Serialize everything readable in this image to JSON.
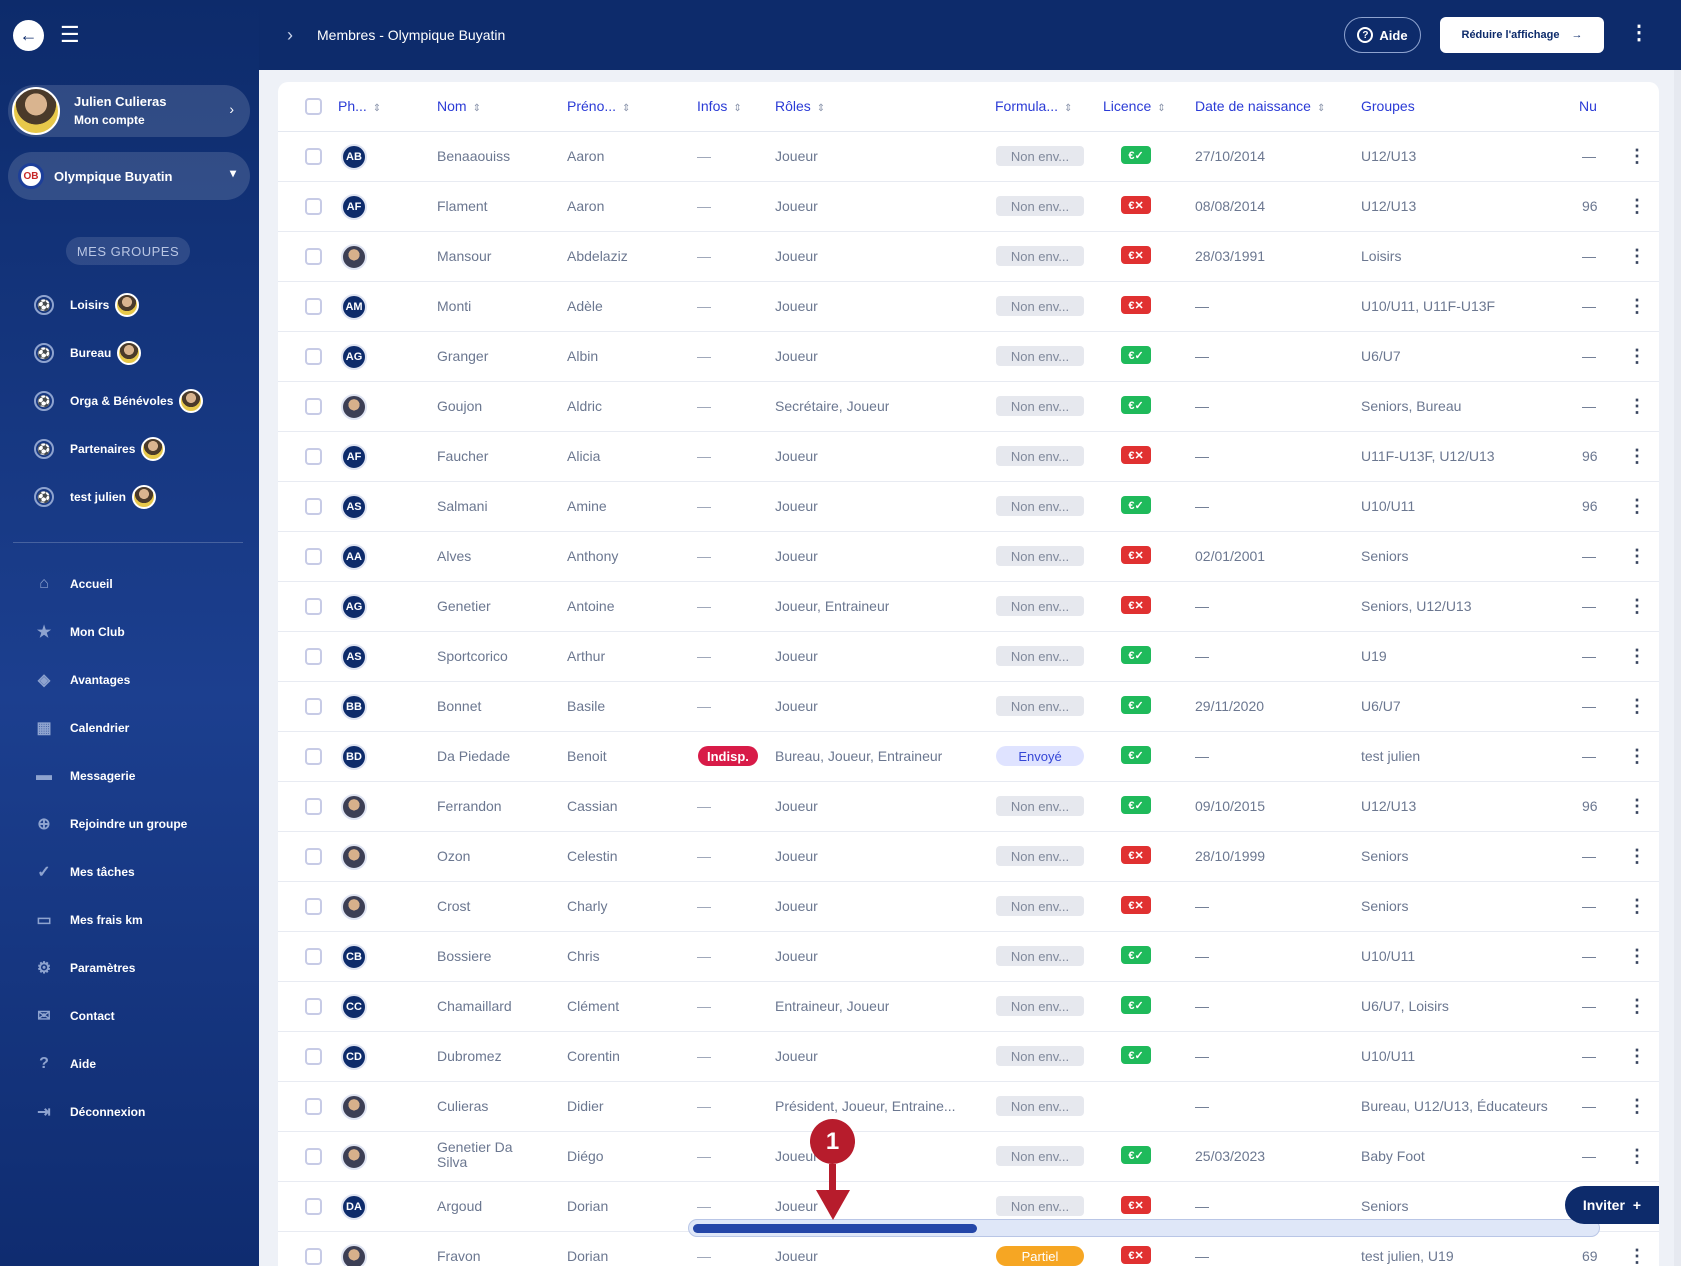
{
  "sidebar": {
    "account": {
      "name": "Julien Culieras",
      "sub": "Mon compte"
    },
    "club": {
      "name": "Olympique Buyatin",
      "logo": "OB"
    },
    "groups_title": "MES GROUPES",
    "groups": [
      "Loisirs",
      "Bureau",
      "Orga & Bénévoles",
      "Partenaires",
      "test julien"
    ],
    "nav": [
      {
        "label": "Accueil",
        "icon": "home-icon"
      },
      {
        "label": "Mon Club",
        "icon": "star-icon"
      },
      {
        "label": "Avantages",
        "icon": "gift-icon"
      },
      {
        "label": "Calendrier",
        "icon": "calendar-icon"
      },
      {
        "label": "Messagerie",
        "icon": "message-icon"
      },
      {
        "label": "Rejoindre un groupe",
        "icon": "add-user-icon"
      },
      {
        "label": "Mes tâches",
        "icon": "tasks-icon"
      },
      {
        "label": "Mes frais km",
        "icon": "car-icon"
      },
      {
        "label": "Paramètres",
        "icon": "gear-icon"
      },
      {
        "label": "Contact",
        "icon": "mail-icon"
      },
      {
        "label": "Aide",
        "icon": "help-icon"
      },
      {
        "label": "Déconnexion",
        "icon": "logout-icon"
      }
    ]
  },
  "topbar": {
    "breadcrumb": "Membres - Olympique Buyatin",
    "help_label": "Aide",
    "reduce_label": "Réduire l'affichage"
  },
  "table": {
    "headers": {
      "photo": "Ph...",
      "nom": "Nom",
      "prenom": "Préno...",
      "infos": "Infos",
      "roles": "Rôles",
      "formulaire": "Formula...",
      "licence": "Licence",
      "naissance": "Date de naissance",
      "groupes": "Groupes",
      "numero": "Nu"
    },
    "rows": [
      {
        "initials": "AB",
        "nom": "Benaaouiss",
        "prenom": "Aaron",
        "infos": "—",
        "roles": "Joueur",
        "form": "Non env...",
        "form_type": "none",
        "lic": "ok",
        "lic_text": "€✓",
        "dob": "27/10/2014",
        "groupes": "U12/U13",
        "num": "—"
      },
      {
        "initials": "AF",
        "nom": "Flament",
        "prenom": "Aaron",
        "infos": "—",
        "roles": "Joueur",
        "form": "Non env...",
        "form_type": "none",
        "lic": "ko",
        "lic_text": "€✕",
        "dob": "08/08/2014",
        "groupes": "U12/U13",
        "num": "96"
      },
      {
        "initials": "",
        "nom": "Mansour",
        "prenom": "Abdelaziz",
        "infos": "—",
        "roles": "Joueur",
        "form": "Non env...",
        "form_type": "none",
        "lic": "ko",
        "lic_text": "€✕",
        "dob": "28/03/1991",
        "groupes": "Loisirs",
        "num": "—"
      },
      {
        "initials": "AM",
        "nom": "Monti",
        "prenom": "Adèle",
        "infos": "—",
        "roles": "Joueur",
        "form": "Non env...",
        "form_type": "none",
        "lic": "ko",
        "lic_text": "€✕",
        "dob": "—",
        "groupes": "U10/U11, U11F-U13F",
        "num": "—"
      },
      {
        "initials": "AG",
        "nom": "Granger",
        "prenom": "Albin",
        "infos": "—",
        "roles": "Joueur",
        "form": "Non env...",
        "form_type": "none",
        "lic": "ok",
        "lic_text": "€✓",
        "dob": "—",
        "groupes": "U6/U7",
        "num": "—"
      },
      {
        "initials": "",
        "nom": "Goujon",
        "prenom": "Aldric",
        "infos": "—",
        "roles": "Secrétaire, Joueur",
        "form": "Non env...",
        "form_type": "none",
        "lic": "ok",
        "lic_text": "€✓",
        "dob": "—",
        "groupes": "Seniors, Bureau",
        "num": "—"
      },
      {
        "initials": "AF",
        "nom": "Faucher",
        "prenom": "Alicia",
        "infos": "—",
        "roles": "Joueur",
        "form": "Non env...",
        "form_type": "none",
        "lic": "ko",
        "lic_text": "€✕",
        "dob": "—",
        "groupes": "U11F-U13F, U12/U13",
        "num": "96"
      },
      {
        "initials": "AS",
        "nom": "Salmani",
        "prenom": "Amine",
        "infos": "—",
        "roles": "Joueur",
        "form": "Non env...",
        "form_type": "none",
        "lic": "ok",
        "lic_text": "€✓",
        "dob": "—",
        "groupes": "U10/U11",
        "num": "96"
      },
      {
        "initials": "AA",
        "nom": "Alves",
        "prenom": "Anthony",
        "infos": "—",
        "roles": "Joueur",
        "form": "Non env...",
        "form_type": "none",
        "lic": "ko",
        "lic_text": "€✕",
        "dob": "02/01/2001",
        "groupes": "Seniors",
        "num": "—"
      },
      {
        "initials": "AG",
        "nom": "Genetier",
        "prenom": "Antoine",
        "infos": "—",
        "roles": "Joueur, Entraineur",
        "form": "Non env...",
        "form_type": "none",
        "lic": "ko",
        "lic_text": "€✕",
        "dob": "—",
        "groupes": "Seniors, U12/U13",
        "num": "—"
      },
      {
        "initials": "AS",
        "nom": "Sportcorico",
        "prenom": "Arthur",
        "infos": "—",
        "roles": "Joueur",
        "form": "Non env...",
        "form_type": "none",
        "lic": "ok",
        "lic_text": "€✓",
        "dob": "—",
        "groupes": "U19",
        "num": "—"
      },
      {
        "initials": "BB",
        "nom": "Bonnet",
        "prenom": "Basile",
        "infos": "—",
        "roles": "Joueur",
        "form": "Non env...",
        "form_type": "none",
        "lic": "ok",
        "lic_text": "€✓",
        "dob": "29/11/2020",
        "groupes": "U6/U7",
        "num": "—"
      },
      {
        "initials": "BD",
        "nom": "Da Piedade",
        "prenom": "Benoit",
        "infos": "Indisp.",
        "roles": "Bureau, Joueur, Entraineur",
        "form": "Envoyé",
        "form_type": "sent",
        "lic": "ok",
        "lic_text": "€✓",
        "dob": "—",
        "groupes": "test julien",
        "num": "—"
      },
      {
        "initials": "",
        "nom": "Ferrandon",
        "prenom": "Cassian",
        "infos": "—",
        "roles": "Joueur",
        "form": "Non env...",
        "form_type": "none",
        "lic": "ok",
        "lic_text": "€✓",
        "dob": "09/10/2015",
        "groupes": "U12/U13",
        "num": "96"
      },
      {
        "initials": "",
        "nom": "Ozon",
        "prenom": "Celestin",
        "infos": "—",
        "roles": "Joueur",
        "form": "Non env...",
        "form_type": "none",
        "lic": "ko",
        "lic_text": "€✕",
        "dob": "28/10/1999",
        "groupes": "Seniors",
        "num": "—"
      },
      {
        "initials": "",
        "nom": "Crost",
        "prenom": "Charly",
        "infos": "—",
        "roles": "Joueur",
        "form": "Non env...",
        "form_type": "none",
        "lic": "ko",
        "lic_text": "€✕",
        "dob": "—",
        "groupes": "Seniors",
        "num": "—"
      },
      {
        "initials": "CB",
        "nom": "Bossiere",
        "prenom": "Chris",
        "infos": "—",
        "roles": "Joueur",
        "form": "Non env...",
        "form_type": "none",
        "lic": "ok",
        "lic_text": "€✓",
        "dob": "—",
        "groupes": "U10/U11",
        "num": "—"
      },
      {
        "initials": "CC",
        "nom": "Chamaillard",
        "prenom": "Clément",
        "infos": "—",
        "roles": "Entraineur, Joueur",
        "form": "Non env...",
        "form_type": "none",
        "lic": "ok",
        "lic_text": "€✓",
        "dob": "—",
        "groupes": "U6/U7, Loisirs",
        "num": "—"
      },
      {
        "initials": "CD",
        "nom": "Dubromez",
        "prenom": "Corentin",
        "infos": "—",
        "roles": "Joueur",
        "form": "Non env...",
        "form_type": "none",
        "lic": "ok",
        "lic_text": "€✓",
        "dob": "—",
        "groupes": "U10/U11",
        "num": "—"
      },
      {
        "initials": "",
        "nom": "Culieras",
        "prenom": "Didier",
        "infos": "—",
        "roles": "Président, Joueur, Entraine...",
        "form": "Non env...",
        "form_type": "none",
        "lic": "",
        "lic_text": "",
        "dob": "—",
        "groupes": "Bureau, U12/U13, Éducateurs",
        "num": "—"
      },
      {
        "initials": "",
        "nom": "Genetier Da Silva",
        "prenom": "Diégo",
        "infos": "—",
        "roles": "Joueur",
        "form": "Non env...",
        "form_type": "none",
        "lic": "ok",
        "lic_text": "€✓",
        "dob": "25/03/2023",
        "groupes": "Baby Foot",
        "num": "—"
      },
      {
        "initials": "DA",
        "nom": "Argoud",
        "prenom": "Dorian",
        "infos": "—",
        "roles": "Joueur",
        "form": "Non env...",
        "form_type": "none",
        "lic": "ko",
        "lic_text": "€✕",
        "dob": "—",
        "groupes": "Seniors",
        "num": "—"
      },
      {
        "initials": "",
        "nom": "Fravon",
        "prenom": "Dorian",
        "infos": "—",
        "roles": "Joueur",
        "form": "Partiel",
        "form_type": "part",
        "lic": "ko",
        "lic_text": "€✕",
        "dob": "—",
        "groupes": "test julien, U19",
        "num": "69"
      }
    ]
  },
  "overlay": {
    "marker_number": "1",
    "invite_label": "Inviter"
  }
}
